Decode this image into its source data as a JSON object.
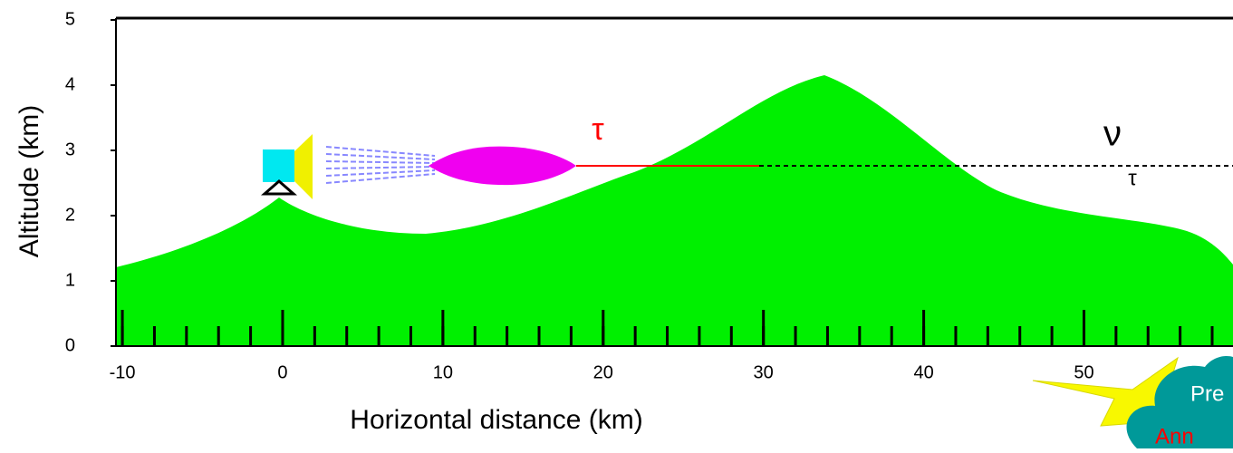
{
  "axes": {
    "x_label": "Horizontal distance (km)",
    "y_label": "Altitude (km)",
    "xlim": [
      -10.4,
      59.3
    ],
    "ylim": [
      0,
      5
    ],
    "xticks": [
      -10,
      0,
      10,
      20,
      30,
      40,
      50
    ],
    "yticks": [
      0,
      1,
      2,
      3,
      4,
      5
    ]
  },
  "annotations": {
    "tau": "τ",
    "nu": "ν",
    "nu_sub": "τ",
    "cloud_top": "Pre",
    "cloud_bottom": "Ann"
  }
}
